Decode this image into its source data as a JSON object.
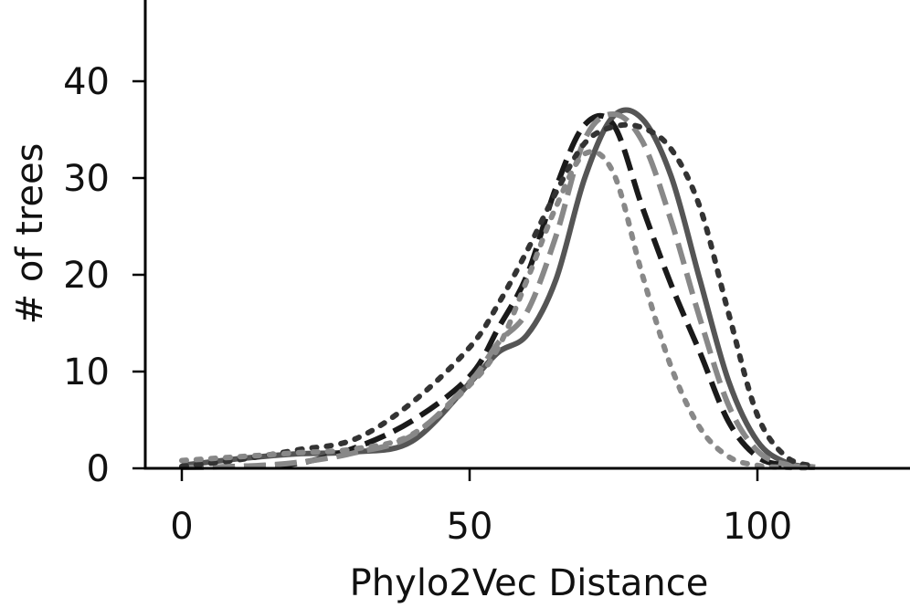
{
  "chart_data": {
    "type": "line",
    "title": "",
    "xlabel": "Phylo2Vec Distance",
    "ylabel": "# of trees",
    "xlim": [
      -6,
      126
    ],
    "ylim": [
      0,
      48
    ],
    "xticks": [
      0,
      50,
      100
    ],
    "yticks": [
      0,
      10,
      20,
      30,
      40
    ],
    "xtick_labels": [
      "0",
      "50",
      "100"
    ],
    "ytick_labels": [
      "0",
      "10",
      "20",
      "30",
      "40"
    ],
    "grid": false,
    "legend": "none",
    "series": [
      {
        "style": "solid",
        "color": "#555555",
        "x": [
          0,
          10,
          20,
          30,
          40,
          50,
          55,
          60,
          65,
          70,
          75,
          80,
          85,
          90,
          95,
          100,
          105,
          110
        ],
        "y": [
          0.3,
          1.0,
          1.5,
          1.7,
          2.8,
          8.8,
          12.0,
          13.8,
          19.5,
          30.0,
          36.4,
          36.1,
          30.2,
          19.5,
          9.0,
          2.8,
          0.6,
          0.1
        ]
      },
      {
        "style": "dashed",
        "color": "#1a1a1a",
        "x": [
          0,
          10,
          20,
          30,
          40,
          50,
          55,
          60,
          65,
          70,
          75,
          80,
          85,
          90,
          95,
          100,
          105,
          110
        ],
        "y": [
          0.1,
          0.2,
          0.5,
          2.1,
          4.9,
          9.5,
          14.5,
          20.0,
          29.0,
          35.5,
          35.5,
          27.0,
          19.0,
          12.0,
          4.8,
          1.2,
          0.3,
          0.1
        ]
      },
      {
        "style": "dashed",
        "color": "#888888",
        "x": [
          0,
          10,
          20,
          30,
          40,
          50,
          55,
          60,
          65,
          70,
          75,
          80,
          85,
          90,
          95,
          100,
          105,
          110
        ],
        "y": [
          0.1,
          0.2,
          0.6,
          1.6,
          3.4,
          8.9,
          13.0,
          16.2,
          24.0,
          34.0,
          36.6,
          33.8,
          25.6,
          15.5,
          6.5,
          1.8,
          0.4,
          0.1
        ]
      },
      {
        "style": "dotted",
        "color": "#333333",
        "x": [
          0,
          10,
          20,
          30,
          40,
          50,
          55,
          60,
          65,
          70,
          75,
          80,
          85,
          90,
          95,
          100,
          105,
          110
        ],
        "y": [
          0.2,
          0.9,
          1.9,
          3.0,
          6.8,
          12.5,
          17.0,
          22.5,
          28.5,
          33.6,
          35.3,
          35.2,
          33.0,
          27.0,
          16.0,
          5.5,
          1.2,
          0.2
        ]
      },
      {
        "style": "dotted",
        "color": "#888888",
        "x": [
          0,
          10,
          20,
          30,
          40,
          50,
          55,
          60,
          65,
          70,
          75,
          80,
          85,
          90,
          95,
          100,
          105,
          110
        ],
        "y": [
          0.8,
          1.2,
          1.6,
          2.0,
          3.5,
          8.6,
          12.5,
          19.5,
          27.0,
          32.5,
          30.5,
          20.0,
          10.5,
          4.2,
          1.2,
          0.3,
          0.1,
          0.05
        ]
      }
    ]
  }
}
